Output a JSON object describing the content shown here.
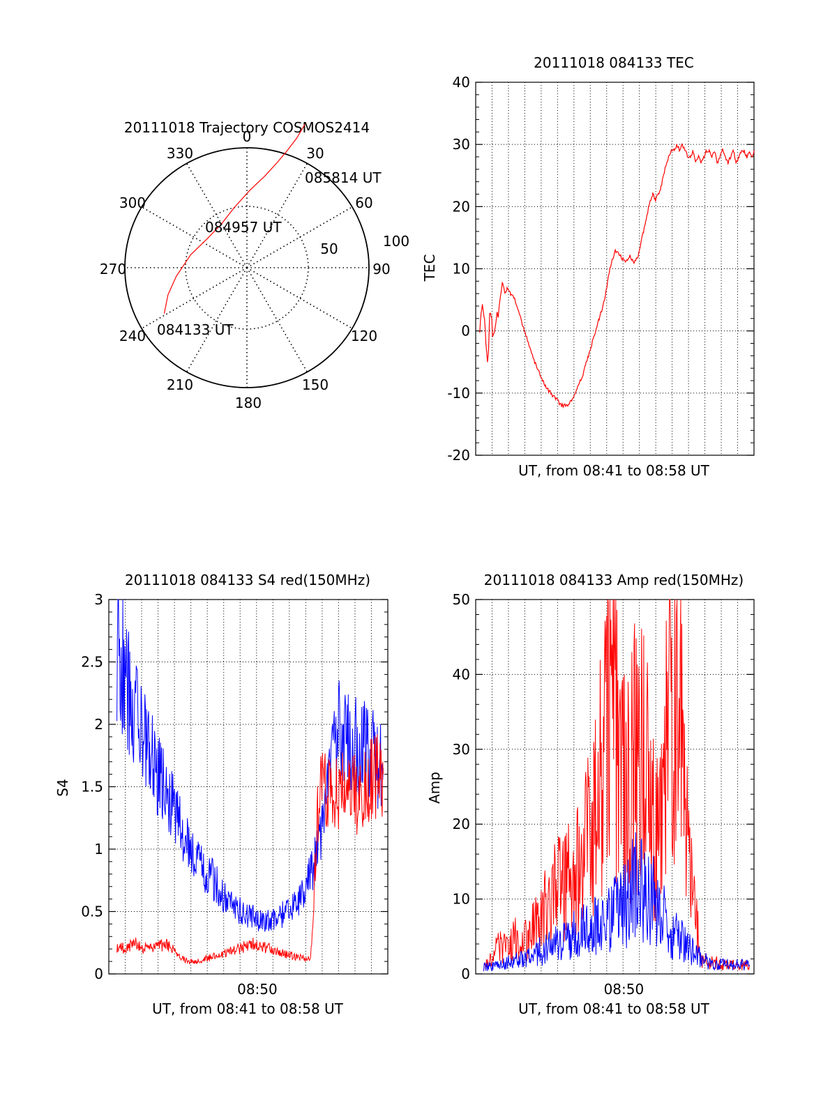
{
  "chart_data": [
    {
      "type": "polar",
      "title": "20111018 Trajectory COSMOS2414",
      "angle_labels": [
        "0",
        "30",
        "60",
        "90",
        "120",
        "150",
        "180",
        "210",
        "240",
        "270",
        "300",
        "330"
      ],
      "radius_labels": [
        "50",
        "100"
      ],
      "radius_range": [
        0,
        100
      ],
      "grid": true,
      "series": [
        {
          "color": "#ff0000",
          "points": [
            {
              "az": 241,
              "zenith": 77
            },
            {
              "az": 251,
              "zenith": 68
            },
            {
              "az": 263,
              "zenith": 58
            },
            {
              "az": 283,
              "zenith": 47
            },
            {
              "az": 306,
              "zenith": 40
            },
            {
              "az": 329,
              "zenith": 41
            },
            {
              "az": 348,
              "zenith": 50
            },
            {
              "az": 2,
              "zenith": 63
            },
            {
              "az": 11,
              "zenith": 76
            },
            {
              "az": 16,
              "zenith": 89
            },
            {
              "az": 19,
              "zenith": 101
            },
            {
              "az": 21,
              "zenith": 113
            },
            {
              "az": 22,
              "zenith": 126
            }
          ]
        }
      ],
      "annotations": [
        {
          "text": "085814 UT",
          "az": 22,
          "zenith": 126
        },
        {
          "text": "084957 UT",
          "az": 340,
          "zenith": 40
        },
        {
          "text": "084133 UT",
          "az": 241,
          "zenith": 77
        }
      ]
    },
    {
      "type": "line",
      "title": "20111018 084133 TEC",
      "xlabel": "UT, from 08:41 to 08:58 UT",
      "ylabel": "TEC",
      "xlim": [
        0,
        1037
      ],
      "ylim": [
        -20,
        40
      ],
      "yticks": [
        "-20",
        "-10",
        "0",
        "10",
        "20",
        "30",
        "40"
      ],
      "grid": true,
      "series": [
        {
          "color": "#ff0000",
          "x": [
            15,
            20,
            25,
            33,
            38,
            44,
            48,
            52,
            60,
            63,
            70,
            80,
            84,
            90,
            100,
            110,
            117,
            130,
            145,
            160,
            175,
            190,
            205,
            220,
            240,
            260,
            280,
            300,
            320,
            340,
            360,
            380,
            400,
            420,
            440,
            460,
            480,
            500,
            520,
            540,
            560,
            575,
            590,
            605,
            615,
            625,
            635,
            645,
            650,
            660,
            670,
            680,
            690,
            700,
            710,
            720,
            730,
            740,
            750,
            760,
            770,
            780,
            790,
            800,
            810,
            820,
            830,
            840,
            850,
            860,
            870,
            880,
            890,
            900,
            910,
            920,
            930,
            940,
            950,
            960,
            970,
            980,
            990,
            1000,
            1010,
            1020,
            1030,
            1037
          ],
          "values": [
            0,
            3,
            4,
            2,
            -2,
            -5,
            -3,
            3,
            2,
            -1,
            0,
            3,
            2,
            5,
            8,
            6,
            7,
            6,
            5,
            3,
            1,
            -1,
            -3,
            -5,
            -7,
            -9,
            -10,
            -11,
            -12,
            -12,
            -11,
            -9,
            -7,
            -4,
            -1,
            2,
            5,
            10,
            13,
            12,
            11,
            12,
            11,
            12,
            14,
            16,
            18,
            20,
            21,
            22,
            21,
            22,
            23,
            25,
            27,
            28,
            29,
            29,
            30,
            29,
            30,
            29,
            28,
            28,
            29,
            27,
            28,
            27,
            28,
            29,
            29,
            28,
            29,
            27,
            28,
            29,
            28,
            27,
            28,
            29,
            27,
            28,
            29,
            29,
            28,
            29,
            28,
            29
          ]
        }
      ]
    },
    {
      "type": "line",
      "title": "20111018 084133 S4 red(150MHz)",
      "xlabel": "UT, from 08:41 to 08:58 UT",
      "ylabel": "S4",
      "xlim": [
        0,
        1037
      ],
      "ylim": [
        0,
        3
      ],
      "yticks": [
        "0",
        "0.5",
        "1",
        "1.5",
        "2",
        "2.5",
        "3"
      ],
      "xticks": [
        "08:50"
      ],
      "xtick_values": [
        552
      ],
      "grid": true,
      "series": [
        {
          "color": "#0000ff",
          "x": [
            30,
            60,
            90,
            120,
            150,
            180,
            210,
            240,
            270,
            300,
            330,
            360,
            390,
            420,
            450,
            480,
            510,
            540,
            570,
            600,
            630,
            660,
            690,
            720,
            750,
            780,
            810,
            840,
            870,
            900,
            930,
            960,
            990,
            1020
          ],
          "values": [
            2.6,
            2.4,
            2.1,
            2.0,
            1.8,
            1.6,
            1.45,
            1.3,
            1.15,
            1.0,
            0.9,
            0.8,
            0.75,
            0.65,
            0.55,
            0.52,
            0.48,
            0.45,
            0.42,
            0.42,
            0.45,
            0.5,
            0.55,
            0.65,
            0.8,
            1.0,
            1.4,
            1.9,
            1.95,
            1.85,
            1.8,
            1.85,
            1.7,
            1.65
          ]
        },
        {
          "color": "#ff0000",
          "x": [
            30,
            60,
            90,
            120,
            150,
            180,
            210,
            240,
            270,
            300,
            330,
            360,
            390,
            420,
            450,
            480,
            510,
            540,
            570,
            600,
            630,
            660,
            690,
            720,
            750,
            780,
            810,
            840,
            870,
            900,
            930,
            960,
            990,
            1020
          ],
          "values": [
            0.22,
            0.2,
            0.25,
            0.22,
            0.2,
            0.22,
            0.24,
            0.2,
            0.12,
            0.1,
            0.1,
            0.12,
            0.14,
            0.15,
            0.18,
            0.2,
            0.22,
            0.24,
            0.22,
            0.2,
            0.18,
            0.16,
            0.14,
            0.13,
            0.12,
            1.4,
            1.5,
            1.5,
            1.45,
            1.5,
            1.4,
            1.5,
            1.6,
            1.6
          ]
        }
      ]
    },
    {
      "type": "line",
      "title": "20111018 084133 Amp red(150MHz)",
      "xlabel": "UT, from 08:41 to 08:58 UT",
      "ylabel": "Amp",
      "xlim": [
        0,
        1037
      ],
      "ylim": [
        0,
        50
      ],
      "yticks": [
        "0",
        "10",
        "20",
        "30",
        "40",
        "50"
      ],
      "xticks": [
        "08:50"
      ],
      "xtick_values": [
        552
      ],
      "grid": true,
      "series": [
        {
          "color": "#ff0000",
          "x": [
            30,
            60,
            90,
            120,
            150,
            180,
            210,
            240,
            270,
            300,
            330,
            360,
            390,
            420,
            450,
            480,
            510,
            540,
            570,
            600,
            630,
            660,
            690,
            720,
            750,
            780,
            810,
            840,
            870,
            900,
            930,
            960,
            990,
            1020
          ],
          "values": [
            1,
            2,
            4,
            3,
            5,
            4,
            6,
            7,
            10,
            11,
            12,
            13,
            15,
            18,
            22,
            30,
            38,
            26,
            24,
            30,
            28,
            20,
            18,
            34,
            38,
            22,
            10,
            2,
            1.5,
            1.5,
            1.2,
            1.2,
            1.2,
            1.2
          ]
        },
        {
          "color": "#0000ff",
          "x": [
            30,
            60,
            90,
            120,
            150,
            180,
            210,
            240,
            270,
            300,
            330,
            360,
            390,
            420,
            450,
            480,
            510,
            540,
            570,
            600,
            630,
            660,
            690,
            720,
            750,
            780,
            810,
            840,
            870,
            900,
            930,
            960,
            990,
            1020
          ],
          "values": [
            1,
            1,
            1.2,
            1.5,
            1.8,
            2,
            2.5,
            3,
            3.5,
            4,
            4.5,
            5,
            5.5,
            6,
            6.5,
            7,
            8,
            9,
            10,
            12,
            11,
            10,
            8,
            6,
            5,
            4,
            3,
            2,
            1.5,
            1.3,
            1.2,
            1.2,
            1.2,
            1.2
          ]
        }
      ]
    }
  ]
}
